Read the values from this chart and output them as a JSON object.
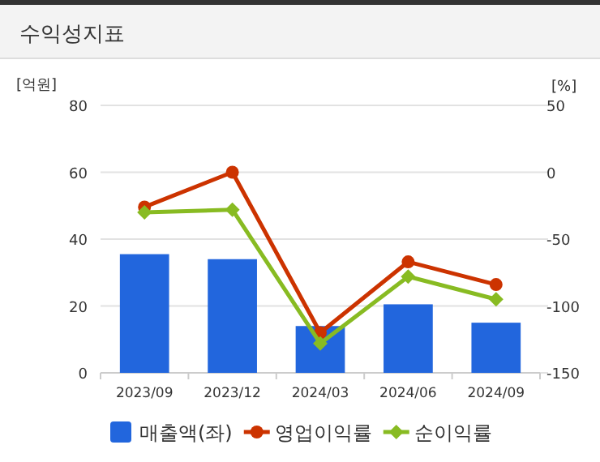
{
  "chart_data": {
    "type": "bar",
    "title": "수익성지표",
    "ylabel": "[억원]",
    "y2label": "[%]",
    "categories": [
      "2023/09",
      "2023/12",
      "2024/03",
      "2024/06",
      "2024/09"
    ],
    "series": [
      {
        "name": "매출액(좌)",
        "color": "#2266dd",
        "values": [
          35.5,
          34,
          14,
          20.5,
          15
        ]
      },
      {
        "name": "영업이익률",
        "type": "line",
        "axis": "y2",
        "color": "#cc3300",
        "marker": "circle",
        "values": [
          -26,
          0,
          -120,
          -67,
          -84
        ]
      },
      {
        "name": "순이익률",
        "type": "line",
        "axis": "y2",
        "color": "#88bb22",
        "marker": "diamond",
        "values": [
          -30,
          -28,
          -128,
          -78,
          -95
        ]
      }
    ],
    "ylim": [
      0,
      80
    ],
    "yticks": [
      0,
      20,
      40,
      60,
      80
    ],
    "y2lim": [
      -150,
      50
    ],
    "y2ticks": [
      -150,
      -100,
      -50,
      0,
      50
    ],
    "grid": "y",
    "legend": "bottom"
  }
}
